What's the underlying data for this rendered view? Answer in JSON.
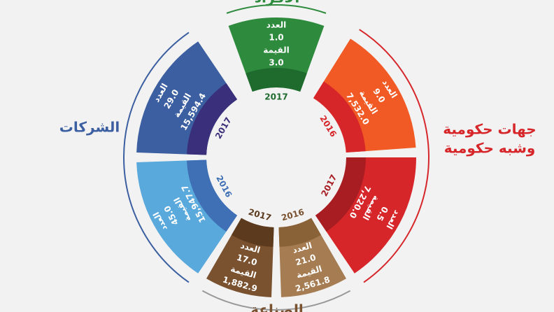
{
  "labels": {
    "top": "الأفراد",
    "right": [
      "جهات حكومية",
      "وشبه حكومية"
    ],
    "left": "الشركات",
    "bottom": "الصناعة"
  },
  "segments": [
    {
      "count_label": "العدد",
      "count": "1.0",
      "value_label": "القيمة",
      "value": "3.0",
      "year": "2017"
    },
    {
      "count_label": "العدد",
      "count": "9.0",
      "value_label": "القيمة",
      "value": "7,532.0",
      "year": "2016"
    },
    {
      "count_label": "العدد",
      "count": "0.5",
      "value_label": "القيمة",
      "value": "7,220.0",
      "year": "2017"
    },
    {
      "count_label": "العدد",
      "count": "21.0",
      "value_label": "القيمة",
      "value": "2,561.8",
      "year": "2016"
    },
    {
      "count_label": "العدد",
      "count": "17.0",
      "value_label": "القيمة",
      "value": "1,882.9",
      "year": "2017"
    },
    {
      "count_label": "العدد",
      "count": "45.0",
      "value_label": "القيمة",
      "value": "15,947.7",
      "year": "2016"
    },
    {
      "count_label": "العدد",
      "count": "29.0",
      "value_label": "القيمة",
      "value": "15,594.4",
      "year": "2017"
    }
  ]
}
